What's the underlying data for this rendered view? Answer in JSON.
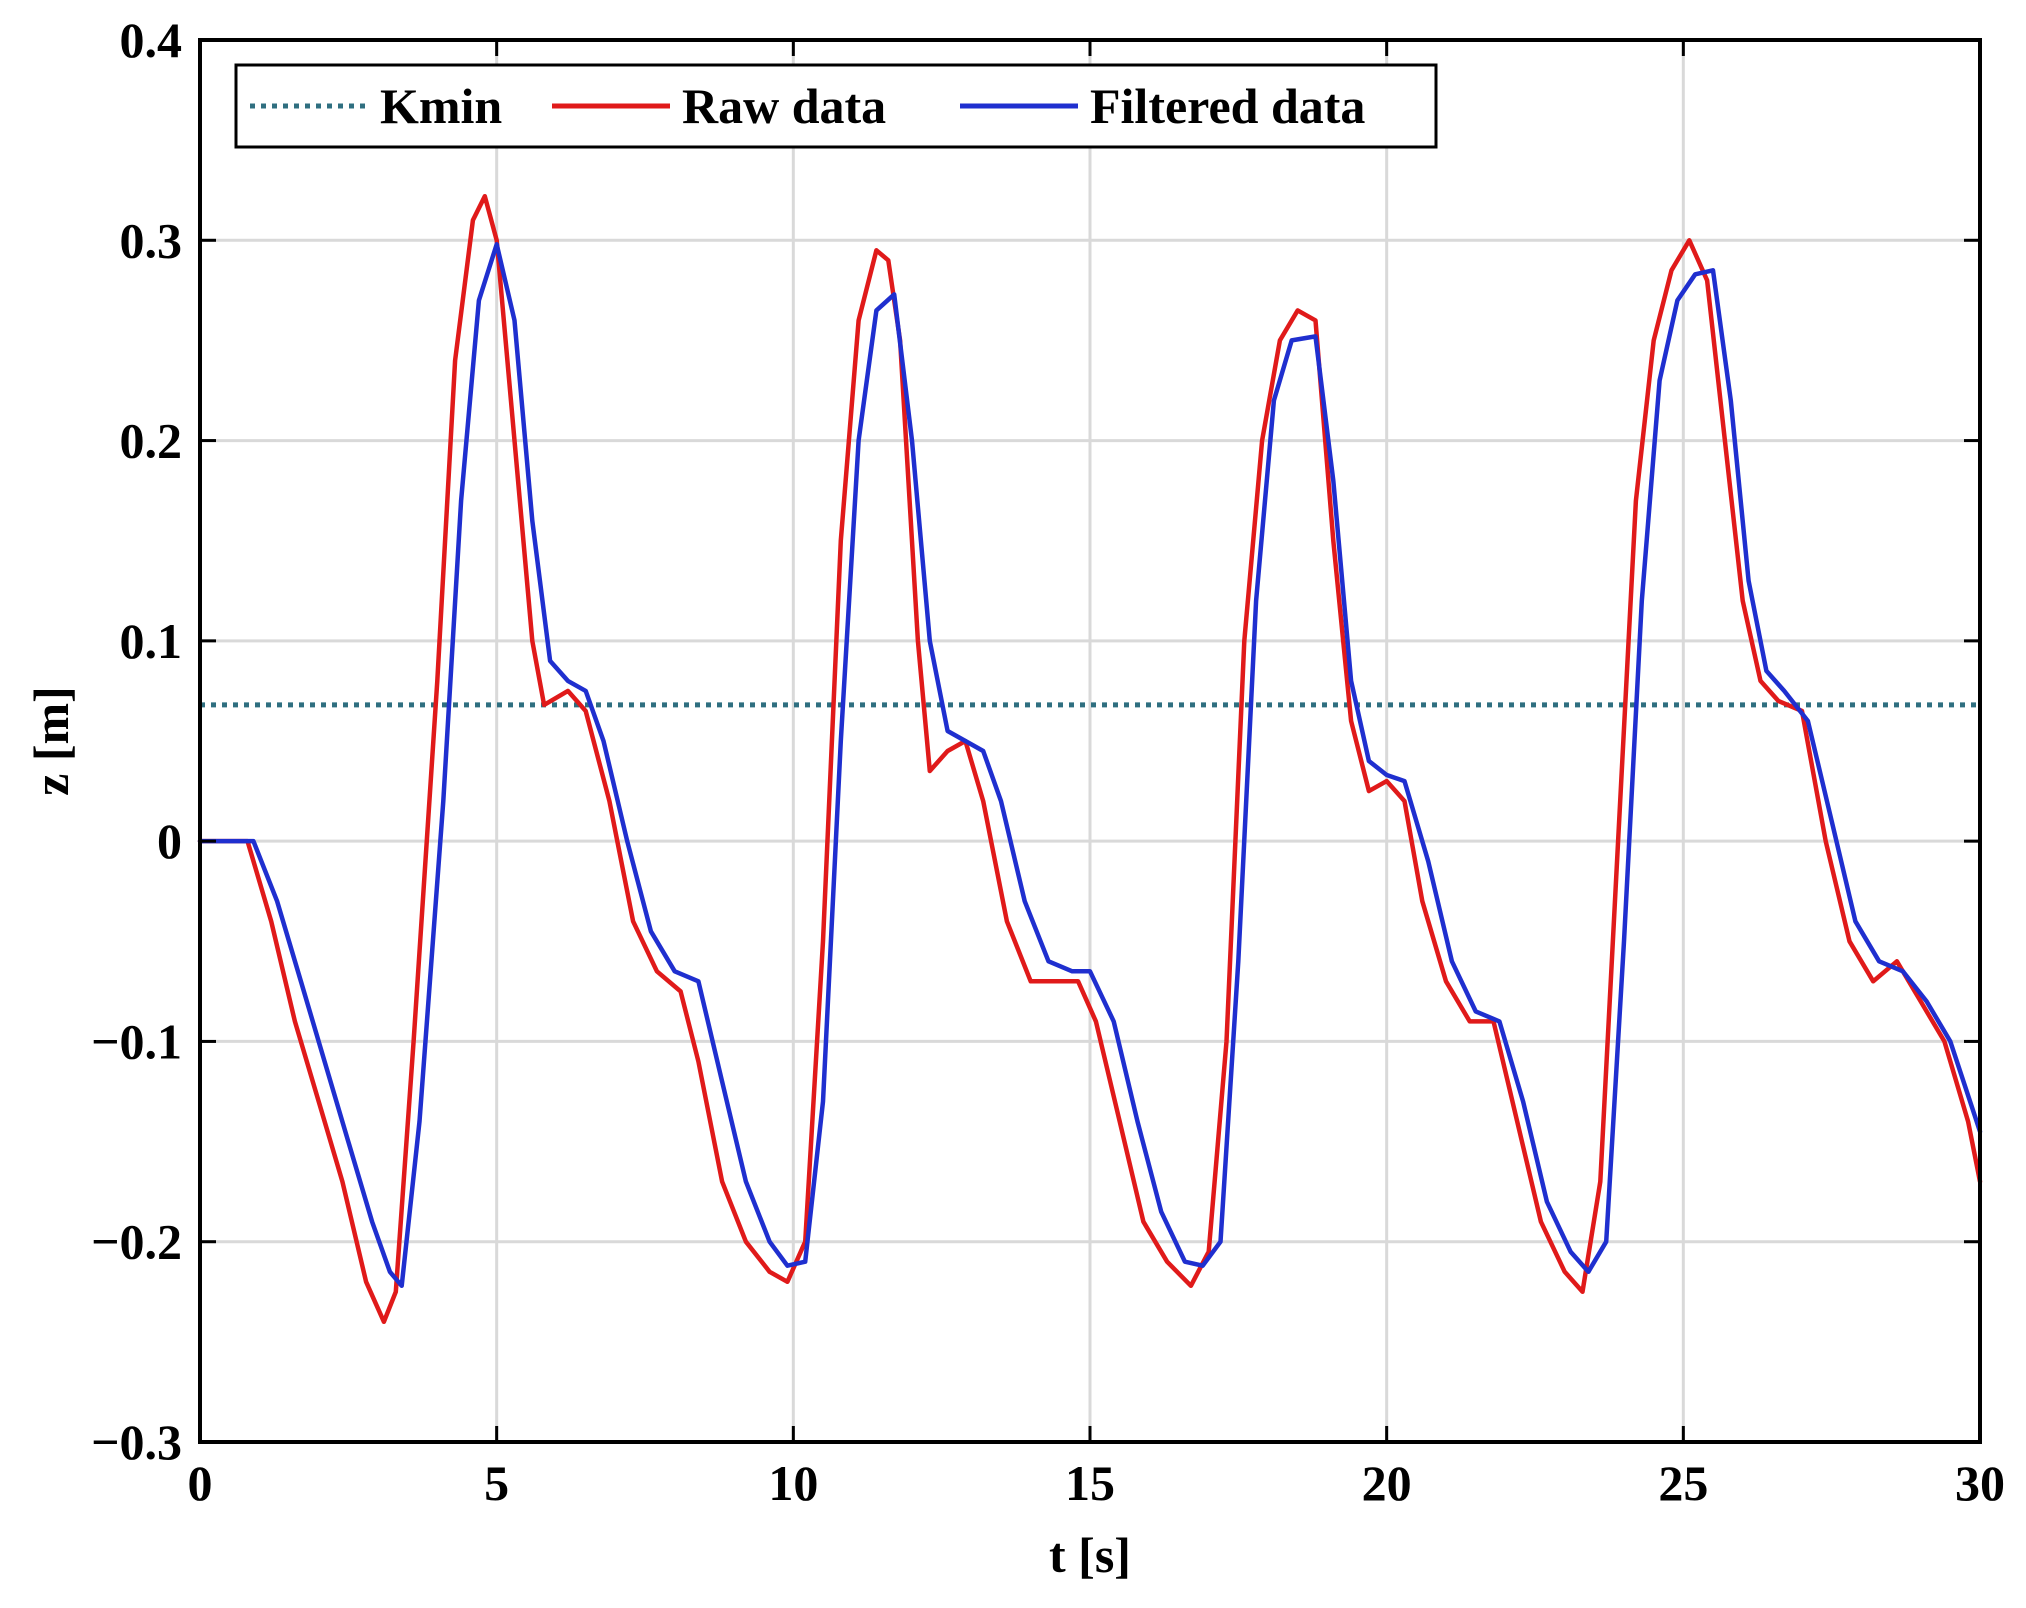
{
  "chart_data": {
    "type": "line",
    "xlabel": "t [s]",
    "ylabel": "z [m]",
    "xlim": [
      0,
      30
    ],
    "ylim": [
      -0.3,
      0.4
    ],
    "xticks": [
      0,
      5,
      10,
      15,
      20,
      25,
      30
    ],
    "xtick_labels": [
      "0",
      "5",
      "10",
      "15",
      "20",
      "25",
      "30"
    ],
    "yticks": [
      -0.3,
      -0.2,
      -0.1,
      0,
      0.1,
      0.2,
      0.3,
      0.4
    ],
    "ytick_labels": [
      "−0.3",
      "−0.2",
      "−0.1",
      "0",
      "0.1",
      "0.2",
      "0.3",
      "0.4"
    ],
    "grid": true,
    "legend_position": "top-left",
    "series": [
      {
        "name": "Kmin",
        "color": "#2f6f80",
        "style": "dotted",
        "x": [
          0,
          30
        ],
        "y": [
          0.068,
          0.068
        ]
      },
      {
        "name": "Raw data",
        "color": "#e01a1a",
        "style": "solid",
        "x": [
          0,
          0.8,
          1.2,
          1.6,
          2.0,
          2.4,
          2.8,
          3.1,
          3.3,
          3.6,
          4.0,
          4.3,
          4.6,
          4.8,
          5.0,
          5.3,
          5.6,
          5.8,
          6.2,
          6.5,
          6.9,
          7.3,
          7.7,
          8.1,
          8.4,
          8.8,
          9.2,
          9.6,
          9.9,
          10.2,
          10.5,
          10.8,
          11.1,
          11.4,
          11.6,
          11.8,
          12.1,
          12.3,
          12.6,
          12.9,
          13.2,
          13.6,
          14.0,
          14.4,
          14.8,
          15.1,
          15.5,
          15.9,
          16.3,
          16.7,
          17.0,
          17.3,
          17.6,
          17.9,
          18.2,
          18.5,
          18.8,
          19.1,
          19.4,
          19.7,
          20.0,
          20.3,
          20.6,
          21.0,
          21.4,
          21.8,
          22.2,
          22.6,
          23.0,
          23.3,
          23.6,
          23.9,
          24.2,
          24.5,
          24.8,
          25.1,
          25.4,
          25.7,
          26.0,
          26.3,
          26.6,
          27.0,
          27.4,
          27.8,
          28.2,
          28.6,
          29.0,
          29.4,
          29.8,
          30.0
        ],
        "y": [
          0.0,
          0.0,
          -0.04,
          -0.09,
          -0.13,
          -0.17,
          -0.22,
          -0.24,
          -0.225,
          -0.1,
          0.08,
          0.24,
          0.31,
          0.322,
          0.3,
          0.2,
          0.1,
          0.068,
          0.075,
          0.065,
          0.02,
          -0.04,
          -0.065,
          -0.075,
          -0.11,
          -0.17,
          -0.2,
          -0.215,
          -0.22,
          -0.2,
          -0.05,
          0.15,
          0.26,
          0.295,
          0.29,
          0.25,
          0.1,
          0.035,
          0.045,
          0.05,
          0.02,
          -0.04,
          -0.07,
          -0.07,
          -0.07,
          -0.09,
          -0.14,
          -0.19,
          -0.21,
          -0.222,
          -0.205,
          -0.1,
          0.1,
          0.2,
          0.25,
          0.265,
          0.26,
          0.15,
          0.06,
          0.025,
          0.03,
          0.02,
          -0.03,
          -0.07,
          -0.09,
          -0.09,
          -0.14,
          -0.19,
          -0.215,
          -0.225,
          -0.17,
          0.0,
          0.17,
          0.25,
          0.285,
          0.3,
          0.28,
          0.2,
          0.12,
          0.08,
          0.07,
          0.065,
          0.0,
          -0.05,
          -0.07,
          -0.06,
          -0.08,
          -0.1,
          -0.14,
          -0.17
        ]
      },
      {
        "name": "Filtered data",
        "color": "#1f2fcf",
        "style": "solid",
        "x": [
          0,
          0.9,
          1.3,
          1.7,
          2.1,
          2.5,
          2.9,
          3.2,
          3.4,
          3.7,
          4.1,
          4.4,
          4.7,
          5.0,
          5.3,
          5.6,
          5.9,
          6.2,
          6.5,
          6.8,
          7.2,
          7.6,
          8.0,
          8.4,
          8.8,
          9.2,
          9.6,
          9.9,
          10.2,
          10.5,
          10.8,
          11.1,
          11.4,
          11.7,
          12.0,
          12.3,
          12.6,
          12.9,
          13.2,
          13.5,
          13.9,
          14.3,
          14.7,
          15.0,
          15.4,
          15.8,
          16.2,
          16.6,
          16.9,
          17.2,
          17.5,
          17.8,
          18.1,
          18.4,
          18.8,
          19.1,
          19.4,
          19.7,
          20.0,
          20.3,
          20.7,
          21.1,
          21.5,
          21.9,
          22.3,
          22.7,
          23.1,
          23.4,
          23.7,
          24.0,
          24.3,
          24.6,
          24.9,
          25.2,
          25.5,
          25.8,
          26.1,
          26.4,
          26.7,
          27.1,
          27.5,
          27.9,
          28.3,
          28.7,
          29.1,
          29.5,
          30.0
        ],
        "y": [
          0.0,
          0.0,
          -0.03,
          -0.07,
          -0.11,
          -0.15,
          -0.19,
          -0.215,
          -0.222,
          -0.14,
          0.02,
          0.17,
          0.27,
          0.298,
          0.26,
          0.16,
          0.09,
          0.08,
          0.075,
          0.05,
          0.0,
          -0.045,
          -0.065,
          -0.07,
          -0.12,
          -0.17,
          -0.2,
          -0.212,
          -0.21,
          -0.13,
          0.05,
          0.2,
          0.265,
          0.273,
          0.2,
          0.1,
          0.055,
          0.05,
          0.045,
          0.02,
          -0.03,
          -0.06,
          -0.065,
          -0.065,
          -0.09,
          -0.14,
          -0.185,
          -0.21,
          -0.212,
          -0.2,
          -0.06,
          0.12,
          0.22,
          0.25,
          0.252,
          0.18,
          0.08,
          0.04,
          0.033,
          0.03,
          -0.01,
          -0.06,
          -0.085,
          -0.09,
          -0.13,
          -0.18,
          -0.205,
          -0.215,
          -0.2,
          -0.05,
          0.12,
          0.23,
          0.27,
          0.283,
          0.285,
          0.22,
          0.13,
          0.085,
          0.075,
          0.06,
          0.01,
          -0.04,
          -0.06,
          -0.065,
          -0.08,
          -0.1,
          -0.145
        ]
      }
    ]
  }
}
